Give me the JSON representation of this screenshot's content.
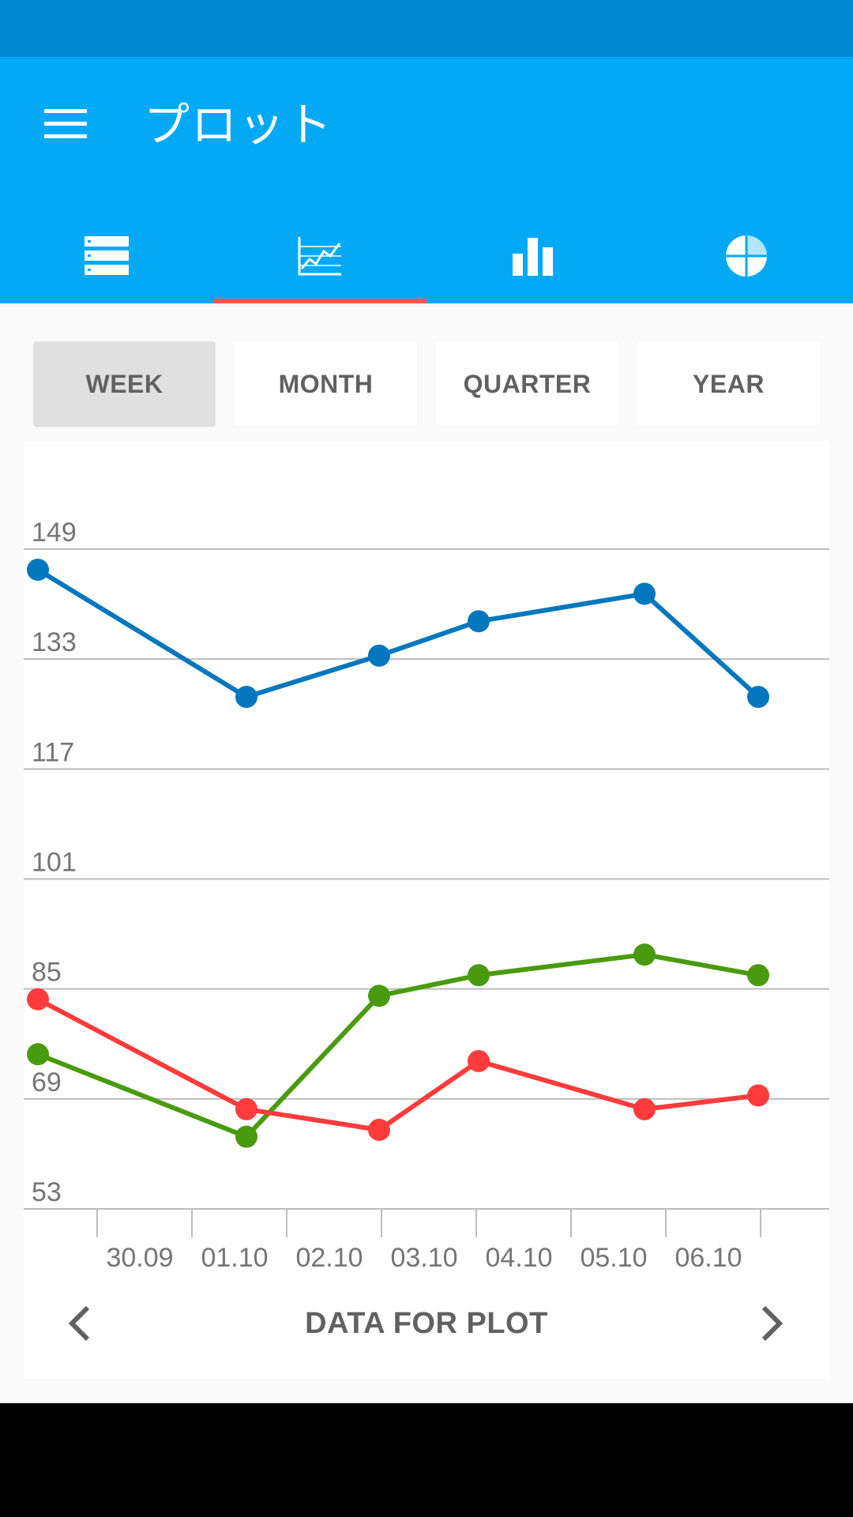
{
  "app": {
    "title": "プロット",
    "accent_color": "#03a9f4",
    "status_bar_color": "#0288d1",
    "indicator_color": "#ff5252"
  },
  "tabs": [
    {
      "icon": "list-icon",
      "selected": false
    },
    {
      "icon": "line-chart-icon",
      "selected": true
    },
    {
      "icon": "bar-chart-icon",
      "selected": false
    },
    {
      "icon": "pie-chart-icon",
      "selected": false
    }
  ],
  "periods": {
    "week": "WEEK",
    "month": "MONTH",
    "quarter": "QUARTER",
    "year": "YEAR",
    "selected": "WEEK"
  },
  "footer": {
    "title": "DATA FOR PLOT",
    "prev_icon": "chevron-left-icon",
    "next_icon": "chevron-right-icon"
  },
  "chart_data": {
    "type": "line",
    "categories": [
      "30.09",
      "01.10",
      "02.10",
      "03.10",
      "04.10",
      "05.10",
      "06.10"
    ],
    "y_ticks": [
      "149",
      "133",
      "117",
      "101",
      "85",
      "69",
      "53"
    ],
    "ylim": [
      53,
      149
    ],
    "grid": true,
    "series": [
      {
        "color": "#0277bd",
        "points": [
          [
            -1.1,
            146
          ],
          [
            1.1,
            127.5
          ],
          [
            2.5,
            133.5
          ],
          [
            3.55,
            138.5
          ],
          [
            5.3,
            142.5
          ],
          [
            6.5,
            127.5
          ]
        ]
      },
      {
        "color": "#4a9a0f",
        "points": [
          [
            -1.1,
            75.5
          ],
          [
            1.1,
            63.5
          ],
          [
            2.5,
            84
          ],
          [
            3.55,
            87
          ],
          [
            5.3,
            90
          ],
          [
            6.5,
            87
          ]
        ]
      },
      {
        "color": "#ff3b3b",
        "points": [
          [
            -1.1,
            83.5
          ],
          [
            1.1,
            67.5
          ],
          [
            2.5,
            64.5
          ],
          [
            3.55,
            74.5
          ],
          [
            5.3,
            67.5
          ],
          [
            6.5,
            69.5
          ]
        ]
      }
    ]
  }
}
